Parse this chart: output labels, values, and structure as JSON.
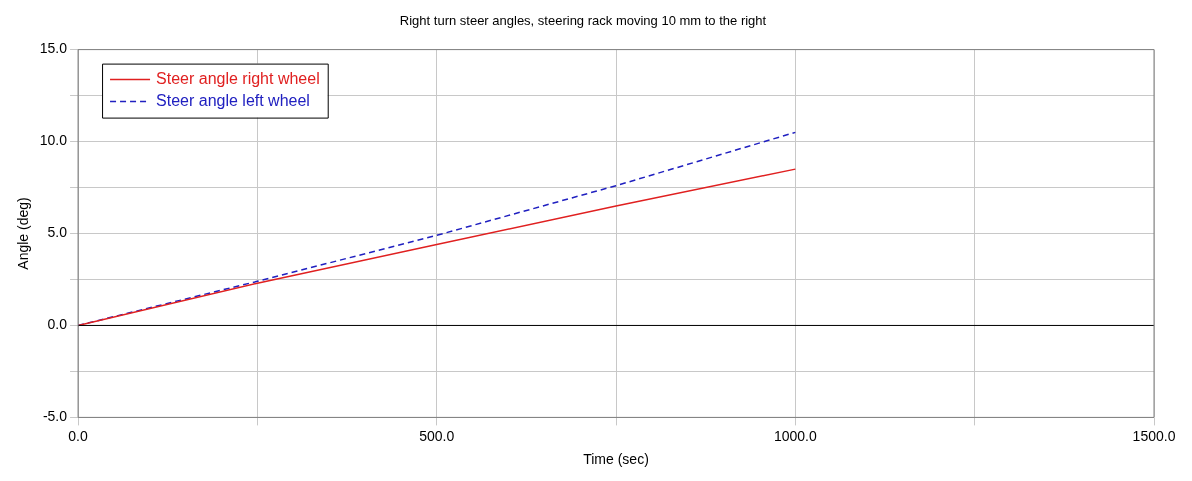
{
  "chart_data": {
    "type": "line",
    "title": "Right turn steer angles, steering rack moving 10 mm to the right",
    "xlabel": "Time (sec)",
    "ylabel": "Angle (deg)",
    "x": [
      0,
      250,
      500,
      750,
      1000
    ],
    "series": [
      {
        "name": "Steer angle right wheel",
        "color": "#e02020",
        "values": [
          0,
          2.3,
          4.4,
          6.5,
          8.5
        ],
        "line_style": "solid"
      },
      {
        "name": "Steer angle left wheel",
        "color": "#2020c0",
        "values": [
          0,
          2.4,
          4.9,
          7.6,
          10.5
        ],
        "line_style": "dashed"
      }
    ],
    "xlim": [
      0,
      1500
    ],
    "xticks": [
      {
        "value": 0,
        "label": "0.0"
      },
      {
        "value": 250,
        "label": null
      },
      {
        "value": 500,
        "label": "500.0"
      },
      {
        "value": 750,
        "label": null
      },
      {
        "value": 1000,
        "label": "1000.0"
      },
      {
        "value": 1250,
        "label": null
      },
      {
        "value": 1500,
        "label": "1500.0"
      }
    ],
    "ylim": [
      -5,
      15
    ],
    "yticks": [
      {
        "value": -5,
        "label": "-5.0"
      },
      {
        "value": -2.5,
        "label": null
      },
      {
        "value": 0,
        "label": "0.0"
      },
      {
        "value": 2.5,
        "label": null
      },
      {
        "value": 5,
        "label": "5.0"
      },
      {
        "value": 7.5,
        "label": null
      },
      {
        "value": 10,
        "label": "10.0"
      },
      {
        "value": 12.5,
        "label": null
      },
      {
        "value": 15,
        "label": "15.0"
      }
    ],
    "ref_lines": [
      {
        "axis": "y",
        "value": 0,
        "color": "#000000"
      }
    ],
    "grid": true,
    "legend": "top left",
    "marker": "none"
  }
}
